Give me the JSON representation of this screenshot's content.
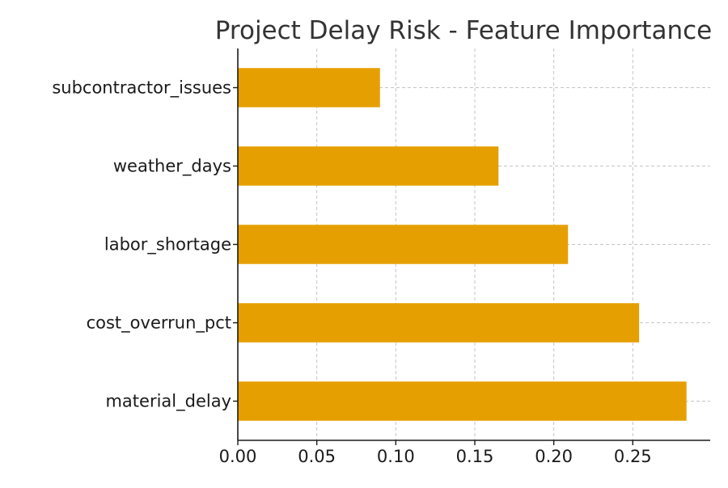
{
  "chart_data": {
    "type": "bar",
    "orientation": "horizontal",
    "title": "Project Delay Risk - Feature Importance",
    "xlabel": "",
    "ylabel": "",
    "categories": [
      "material_delay",
      "cost_overrun_pct",
      "labor_shortage",
      "weather_days",
      "subcontractor_issues"
    ],
    "values": [
      0.284,
      0.254,
      0.209,
      0.165,
      0.09
    ],
    "xlim": [
      0,
      0.299
    ],
    "xticks": [
      0.0,
      0.05,
      0.1,
      0.15,
      0.2,
      0.25
    ],
    "xtick_labels": [
      "0.00",
      "0.05",
      "0.10",
      "0.15",
      "0.20",
      "0.25"
    ],
    "grid": true,
    "bar_color": "#e69f00"
  }
}
